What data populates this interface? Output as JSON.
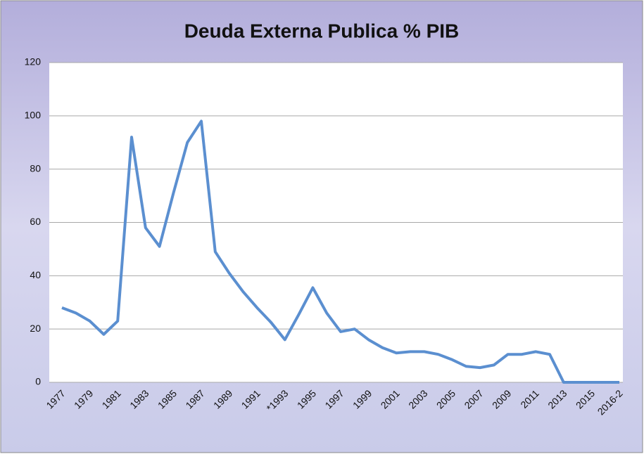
{
  "chart_data": {
    "type": "line",
    "title": "Deuda Externa Publica % PIB",
    "categories": [
      "1977",
      null,
      "1979",
      null,
      "1981",
      null,
      "1983",
      null,
      "1985",
      null,
      "1987",
      null,
      "1989",
      null,
      "1991",
      null,
      "*1993",
      null,
      "1995",
      null,
      "1997",
      null,
      "1999",
      null,
      "2001",
      null,
      "2003",
      null,
      "2005",
      null,
      "2007",
      null,
      "2009",
      null,
      "2011",
      null,
      "2013",
      null,
      "2015",
      null,
      "2016-2"
    ],
    "series": [
      {
        "name": "Deuda Externa Publica % PIB",
        "color": "#5b8fd0",
        "values": [
          28,
          26,
          23,
          18,
          23,
          92,
          58,
          51,
          71,
          90,
          98,
          49,
          41,
          34,
          28,
          22.5,
          16,
          25.5,
          35.5,
          26,
          19,
          20,
          16,
          13,
          11,
          11.5,
          11.5,
          10.5,
          8.5,
          6,
          5.5,
          6.5,
          10.5,
          10.5,
          11.5,
          10.5,
          0,
          0,
          0,
          0,
          0
        ]
      }
    ],
    "ylim": [
      0,
      120
    ],
    "yticks": [
      0,
      20,
      40,
      60,
      80,
      100,
      120
    ],
    "grid": true
  }
}
